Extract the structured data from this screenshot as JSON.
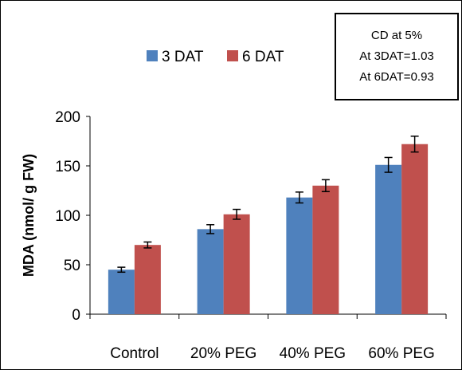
{
  "annotation": {
    "lines": [
      "CD at 5%",
      "At 3DAT=1.03",
      "At 6DAT=0.93"
    ]
  },
  "colors": {
    "series_3dat": "#4F81BD",
    "series_6dat": "#C0504D",
    "axis": "#000000"
  },
  "chart_data": {
    "type": "bar",
    "title": "",
    "xlabel": "",
    "ylabel": "MDA (nmol/ g FW)",
    "categories": [
      "Control",
      "20% PEG",
      "40% PEG",
      "60% PEG"
    ],
    "series": [
      {
        "name": "3 DAT",
        "values": [
          45,
          86,
          118,
          151
        ],
        "errors": [
          2.5,
          4.5,
          5.5,
          7.5
        ]
      },
      {
        "name": "6 DAT",
        "values": [
          70,
          101,
          130,
          172
        ],
        "errors": [
          3,
          5,
          6,
          8
        ]
      }
    ],
    "ylim": [
      0,
      200
    ],
    "yticks": [
      0,
      50,
      100,
      150,
      200
    ],
    "legend_position": "top-center",
    "grid": false
  }
}
